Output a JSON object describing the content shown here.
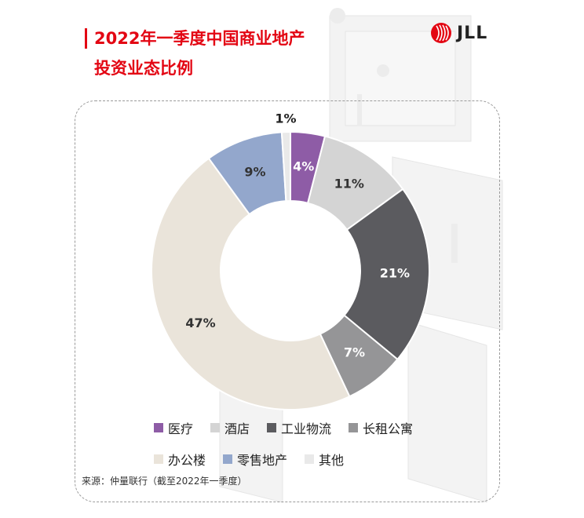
{
  "header": {
    "title_lines": [
      "2022年一季度中国商业地产",
      "投资业态比例"
    ],
    "logo_text": "JLL"
  },
  "chart_data": {
    "type": "pie",
    "donut": true,
    "categories": [
      "医疗",
      "酒店",
      "工业物流",
      "长租公寓",
      "办公楼",
      "零售地产",
      "其他"
    ],
    "values": [
      4,
      11,
      21,
      7,
      47,
      9,
      1
    ],
    "value_labels": [
      "4%",
      "11%",
      "21%",
      "7%",
      "47%",
      "9%",
      "1%"
    ],
    "colors": [
      "#8e5ca6",
      "#d4d4d4",
      "#5b5b5f",
      "#959597",
      "#eae4da",
      "#93a7cc",
      "#e9e9e9"
    ],
    "label_colors": [
      "#ffffff",
      "#333333",
      "#ffffff",
      "#ffffff",
      "#333333",
      "#333333",
      "#333333"
    ],
    "legend_placement": "bottom",
    "start": "top",
    "direction": "clockwise"
  },
  "source": "来源：仲量联行（截至2022年一季度）",
  "colors": {
    "brand": "#e30613"
  }
}
